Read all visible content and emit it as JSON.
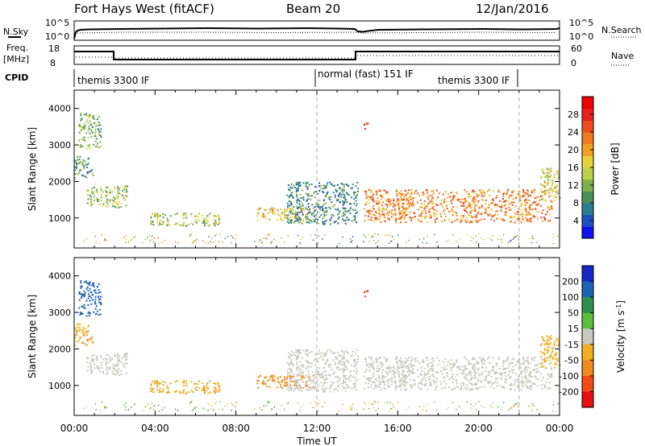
{
  "header": {
    "radar": "Fort Hays West (fitACF)",
    "beam": "Beam 20",
    "date": "12/Jan/2016"
  },
  "side_labels": {
    "nsky": "N.Sky",
    "freq": "Freq.",
    "freq_unit": "[MHz]",
    "cpid": "CPID",
    "nsearch": "N.Search",
    "nave": "Nave",
    "noise_ticks": [
      "10^5",
      "10^0"
    ],
    "freq_ticks": [
      "18",
      "8"
    ],
    "nave_ticks": [
      "60",
      "0"
    ]
  },
  "cpid_segments": [
    {
      "label": "themis 3300 IF",
      "start_hour": 0
    },
    {
      "label": "normal (fast) 151 IF",
      "start_hour": 12
    },
    {
      "label": "themis 3300 IF",
      "start_hour": 22
    }
  ],
  "colorbars": {
    "power": {
      "label": "Power [dB]",
      "ticks": [
        "4",
        "8",
        "12",
        "16",
        "20",
        "24",
        "28"
      ],
      "colors": [
        "#1010f0",
        "#2050c0",
        "#2b7f8c",
        "#4b8f5a",
        "#7fb04a",
        "#bcd04a",
        "#e8d23a",
        "#f0a020",
        "#f07a20",
        "#f04a20",
        "#e81e1e",
        "#f00000"
      ]
    },
    "velocity": {
      "label": "Velocity [m s",
      "label_sup": "-1",
      "label_end": "]",
      "ticks": [
        "200",
        "100",
        "50",
        "15",
        "-15",
        "-50",
        "-100",
        "-200"
      ],
      "colors": [
        "#1428c8",
        "#1e64b4",
        "#2e8f50",
        "#5abf3c",
        "#c8c8c0",
        "#f0b020",
        "#f08a20",
        "#f04a18",
        "#e81010"
      ]
    }
  },
  "chart_data": [
    {
      "type": "heatmap",
      "title": "",
      "xlabel": "Time UT",
      "ylabel": "Slant Range [km]",
      "x_ticks": [
        "00:00",
        "04:00",
        "08:00",
        "12:00",
        "16:00",
        "20:00",
        "00:00"
      ],
      "y_ticks": [
        1000,
        2000,
        3000,
        4000
      ],
      "xlim": [
        0,
        24
      ],
      "ylim": [
        180,
        4500
      ],
      "regions": [
        {
          "x0": 0.2,
          "x1": 1.3,
          "y0": 2900,
          "y1": 3900,
          "value": 12
        },
        {
          "x0": 0.0,
          "x1": 0.9,
          "y0": 2100,
          "y1": 2700,
          "value": 10
        },
        {
          "x0": 0.6,
          "x1": 2.6,
          "y0": 1300,
          "y1": 1900,
          "value": 14
        },
        {
          "x0": 3.7,
          "x1": 7.2,
          "y0": 800,
          "y1": 1150,
          "value": 14
        },
        {
          "x0": 9.0,
          "x1": 11.8,
          "y0": 950,
          "y1": 1300,
          "value": 18
        },
        {
          "x0": 10.5,
          "x1": 14.0,
          "y0": 850,
          "y1": 2000,
          "value": 8
        },
        {
          "x0": 14.3,
          "x1": 23.6,
          "y0": 900,
          "y1": 1800,
          "value": 22
        },
        {
          "x0": 23.0,
          "x1": 24.0,
          "y0": 1500,
          "y1": 2400,
          "value": 16
        },
        {
          "x0": 14.3,
          "x1": 14.5,
          "y0": 3400,
          "y1": 3650,
          "value": 26
        }
      ]
    },
    {
      "type": "heatmap",
      "title": "",
      "xlabel": "Time UT",
      "ylabel": "Slant Range [km]",
      "x_ticks": [
        "00:00",
        "04:00",
        "08:00",
        "12:00",
        "16:00",
        "20:00",
        "00:00"
      ],
      "y_ticks": [
        1000,
        2000,
        3000,
        4000
      ],
      "xlim": [
        0,
        24
      ],
      "ylim": [
        180,
        4500
      ],
      "regions": [
        {
          "x0": 0.2,
          "x1": 1.3,
          "y0": 2900,
          "y1": 3900,
          "value": 150
        },
        {
          "x0": 0.0,
          "x1": 0.9,
          "y0": 2100,
          "y1": 2700,
          "value": -40
        },
        {
          "x0": 0.6,
          "x1": 2.6,
          "y0": 1300,
          "y1": 1900,
          "value": 0
        },
        {
          "x0": 3.7,
          "x1": 7.2,
          "y0": 800,
          "y1": 1150,
          "value": -40
        },
        {
          "x0": 9.0,
          "x1": 11.8,
          "y0": 950,
          "y1": 1300,
          "value": -60
        },
        {
          "x0": 10.5,
          "x1": 14.0,
          "y0": 850,
          "y1": 2000,
          "value": 0
        },
        {
          "x0": 14.3,
          "x1": 23.6,
          "y0": 900,
          "y1": 1800,
          "value": 0
        },
        {
          "x0": 23.0,
          "x1": 24.0,
          "y0": 1500,
          "y1": 2400,
          "value": -30
        },
        {
          "x0": 14.3,
          "x1": 14.5,
          "y0": 3400,
          "y1": 3650,
          "value": -150
        }
      ]
    }
  ]
}
